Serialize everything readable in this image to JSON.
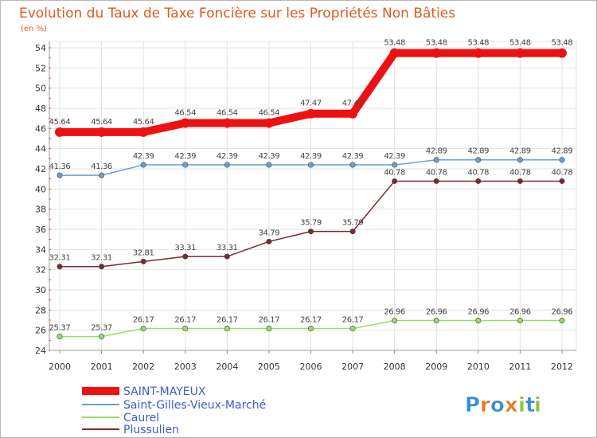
{
  "chart_data": {
    "type": "line",
    "title": "Evolution du Taux de Taxe Foncière sur les Propriétés Non Bâties",
    "subtitle": "(en %)",
    "categories": [
      "2000",
      "2001",
      "2002",
      "2003",
      "2004",
      "2005",
      "2006",
      "2007",
      "2008",
      "2009",
      "2010",
      "2011",
      "2012"
    ],
    "yticks": [
      24,
      26,
      28,
      30,
      32,
      34,
      36,
      38,
      40,
      42,
      44,
      46,
      48,
      50,
      52,
      54
    ],
    "ylim": [
      24,
      54
    ],
    "grid": true,
    "legend_position": "bottom-left",
    "series": [
      {
        "name": "SAINT-MAYEUX",
        "color": "#ee1111",
        "values": [
          45.64,
          45.64,
          45.64,
          46.54,
          46.54,
          46.54,
          47.47,
          47.47,
          53.48,
          53.48,
          53.48,
          53.48,
          53.48
        ],
        "labels": [
          "45.64",
          "45.64",
          "45.64",
          "46.54",
          "46.54",
          "46.54",
          "47.47",
          "47.47",
          "53.48",
          "53.48",
          "53.48",
          "53.48",
          "53.48"
        ]
      },
      {
        "name": "Saint-Gilles-Vieux-Marché",
        "color": "#6b9fd0",
        "values": [
          41.36,
          41.36,
          42.39,
          42.39,
          42.39,
          42.39,
          42.39,
          42.39,
          42.39,
          42.89,
          42.89,
          42.89,
          42.89
        ],
        "labels": [
          "41.36",
          "41.36",
          "42.39",
          "42.39",
          "42.39",
          "42.39",
          "42.39",
          "42.39",
          "42.39",
          "42.89",
          "42.89",
          "42.89",
          "42.89"
        ]
      },
      {
        "name": "Caurel",
        "color": "#99dd66",
        "values": [
          25.37,
          25.37,
          26.17,
          26.17,
          26.17,
          26.17,
          26.17,
          26.17,
          26.96,
          26.96,
          26.96,
          26.96,
          26.96
        ],
        "labels": [
          "25.37",
          "25.37",
          "26.17",
          "26.17",
          "26.17",
          "26.17",
          "26.17",
          "26.17",
          "26.96",
          "26.96",
          "26.96",
          "26.96",
          "26.96"
        ]
      },
      {
        "name": "Plussulien",
        "color": "#7a2a30",
        "values": [
          32.31,
          32.31,
          32.81,
          33.31,
          33.31,
          34.79,
          35.79,
          35.79,
          40.78,
          40.78,
          40.78,
          40.78,
          40.78
        ],
        "labels": [
          "32.31",
          "32.31",
          "32.81",
          "33.31",
          "33.31",
          "34.79",
          "35.79",
          "35.79",
          "40.78",
          "40.78",
          "40.78",
          "40.78",
          "40.78"
        ]
      }
    ]
  },
  "branding": {
    "letters": [
      "P",
      "r",
      "o",
      "x",
      "i",
      "t",
      "i"
    ],
    "colors": [
      "#3a8fd6",
      "#e8791e",
      "#3a8fd6",
      "#e8791e",
      "#8fc33a",
      "#3a8fd6",
      "#8fc33a"
    ]
  }
}
